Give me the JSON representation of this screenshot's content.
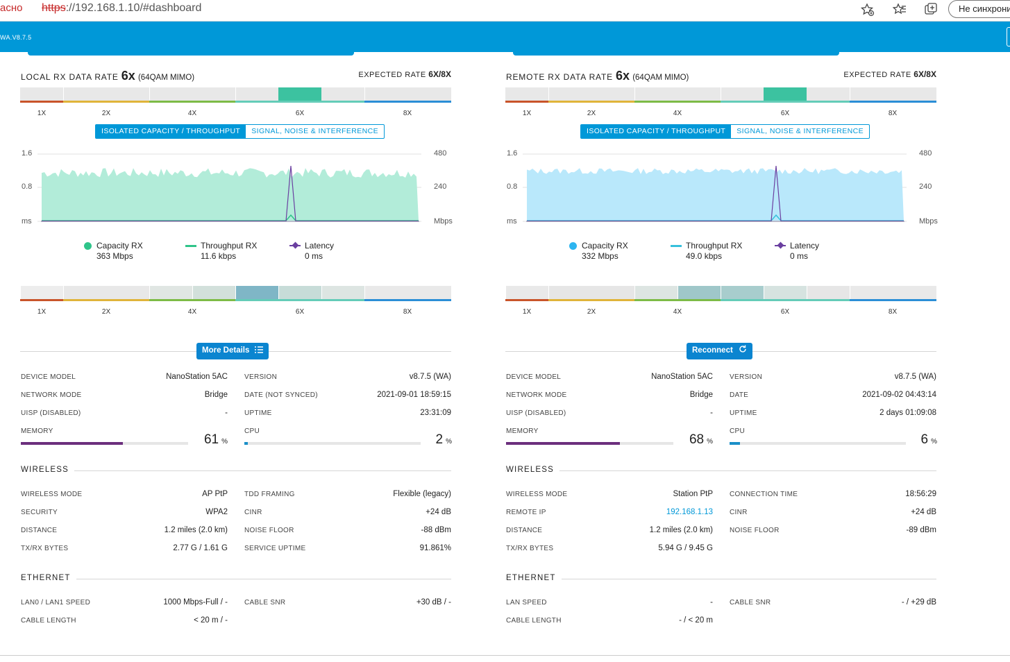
{
  "browser": {
    "secure_text": "асно",
    "url_scheme": "https",
    "url_rest": "://192.168.1.10/#dashboard",
    "sync_label": "Не синхрониз"
  },
  "app": {
    "version": "WA.V8.7.5"
  },
  "tick_labels": [
    "1X",
    "2X",
    "4X",
    "6X",
    "8X"
  ],
  "toggle": {
    "capacity": "ISOLATED CAPACITY / THROUGHPUT",
    "signal": "SIGNAL, NOISE & INTERFERENCE"
  },
  "axis": {
    "left_top": "1.6",
    "left_mid": "0.8",
    "left_unit": "ms",
    "right_top": "480",
    "right_mid": "240",
    "right_unit": "Mbps"
  },
  "labels": {
    "device_model": "DEVICE MODEL",
    "network_mode": "NETWORK MODE",
    "uisp": "UISP (DISABLED)",
    "memory": "MEMORY",
    "version": "VERSION",
    "uptime": "UPTIME",
    "cpu": "CPU",
    "pct": "%",
    "wireless": "WIRELESS",
    "wireless_mode": "WIRELESS MODE",
    "distance": "DISTANCE",
    "txrx": "TX/RX BYTES",
    "cinr": "CINR",
    "noise_floor": "NOISE FLOOR",
    "ethernet": "ETHERNET",
    "cable_snr": "CABLE SNR",
    "cable_length": "CABLE LENGTH"
  },
  "local": {
    "title_prefix": "LOCAL RX DATA RATE",
    "rate": "6x",
    "modulation": "(64QAM MIMO)",
    "expected_label": "EXPECTED RATE",
    "expected_value": "6X/8X",
    "rate_level": "6X",
    "legend": [
      {
        "name": "Capacity RX",
        "value": "363 Mbps"
      },
      {
        "name": "Throughput RX",
        "value": "11.6 kbps"
      },
      {
        "name": "Latency",
        "value": "0 ms"
      }
    ],
    "button": "More Details",
    "device_model": "NanoStation 5AC",
    "network_mode": "Bridge",
    "uisp": "-",
    "memory": 61,
    "version": "v8.7.5 (WA)",
    "date_label": "DATE (NOT SYNCED)",
    "date": "2021-09-01 18:59:15",
    "uptime": "23:31:09",
    "cpu": 2,
    "w1_label": "WIRELESS MODE",
    "w1": "AP PtP",
    "w2_label": "SECURITY",
    "w2": "WPA2",
    "w3_label": "DISTANCE",
    "w3": "1.2 miles (2.0 km)",
    "w4_label": "TX/RX BYTES",
    "w4": "2.77 G / 1.61 G",
    "wr1_label": "TDD FRAMING",
    "wr1": "Flexible (legacy)",
    "wr2_label": "CINR",
    "wr2": "+24 dB",
    "wr3_label": "NOISE FLOOR",
    "wr3": "-88 dBm",
    "wr4_label": "SERVICE UPTIME",
    "wr4": "91.861%",
    "e1_label": "LAN0 / LAN1 SPEED",
    "e1": "1000 Mbps-Full / -",
    "e2_label": "CABLE LENGTH",
    "e2": "< 20 m / -",
    "er1_label": "CABLE SNR",
    "er1": "+30 dB / -",
    "colors": {
      "capacity": "#2fc48a",
      "area": "#b2ecd9",
      "throughput": "#2fc48a",
      "latency": "#6a3fa0"
    }
  },
  "remote": {
    "title_prefix": "REMOTE RX DATA RATE",
    "rate": "6x",
    "modulation": "(64QAM MIMO)",
    "expected_label": "EXPECTED RATE",
    "expected_value": "6X/8X",
    "rate_level": "6X",
    "legend": [
      {
        "name": "Capacity RX",
        "value": "332 Mbps"
      },
      {
        "name": "Throughput RX",
        "value": "49.0 kbps"
      },
      {
        "name": "Latency",
        "value": "0 ms"
      }
    ],
    "button": "Reconnect",
    "device_model": "NanoStation 5AC",
    "network_mode": "Bridge",
    "uisp": "-",
    "memory": 68,
    "version": "v8.7.5 (WA)",
    "date_label": "DATE",
    "date": "2021-09-02 04:43:14",
    "uptime": "2 days 01:09:08",
    "cpu": 6,
    "w1_label": "WIRELESS MODE",
    "w1": "Station PtP",
    "w2_label": "REMOTE IP",
    "w2": "192.168.1.13",
    "w3_label": "DISTANCE",
    "w3": "1.2 miles (2.0 km)",
    "w4_label": "TX/RX BYTES",
    "w4": "5.94 G / 9.45 G",
    "wr1_label": "CONNECTION TIME",
    "wr1": "18:56:29",
    "wr2_label": "CINR",
    "wr2": "+24 dB",
    "wr3_label": "NOISE FLOOR",
    "wr3": "-89 dBm",
    "wr4_label": "",
    "wr4": "",
    "e1_label": "LAN SPEED",
    "e1": "-",
    "e2_label": "CABLE LENGTH",
    "e2": "- / < 20 m",
    "er1_label": "CABLE SNR",
    "er1": "- / +29 dB",
    "colors": {
      "capacity": "#2db5f0",
      "area": "#b9e8fb",
      "throughput": "#36c0dc",
      "latency": "#6a3fa0"
    }
  }
}
